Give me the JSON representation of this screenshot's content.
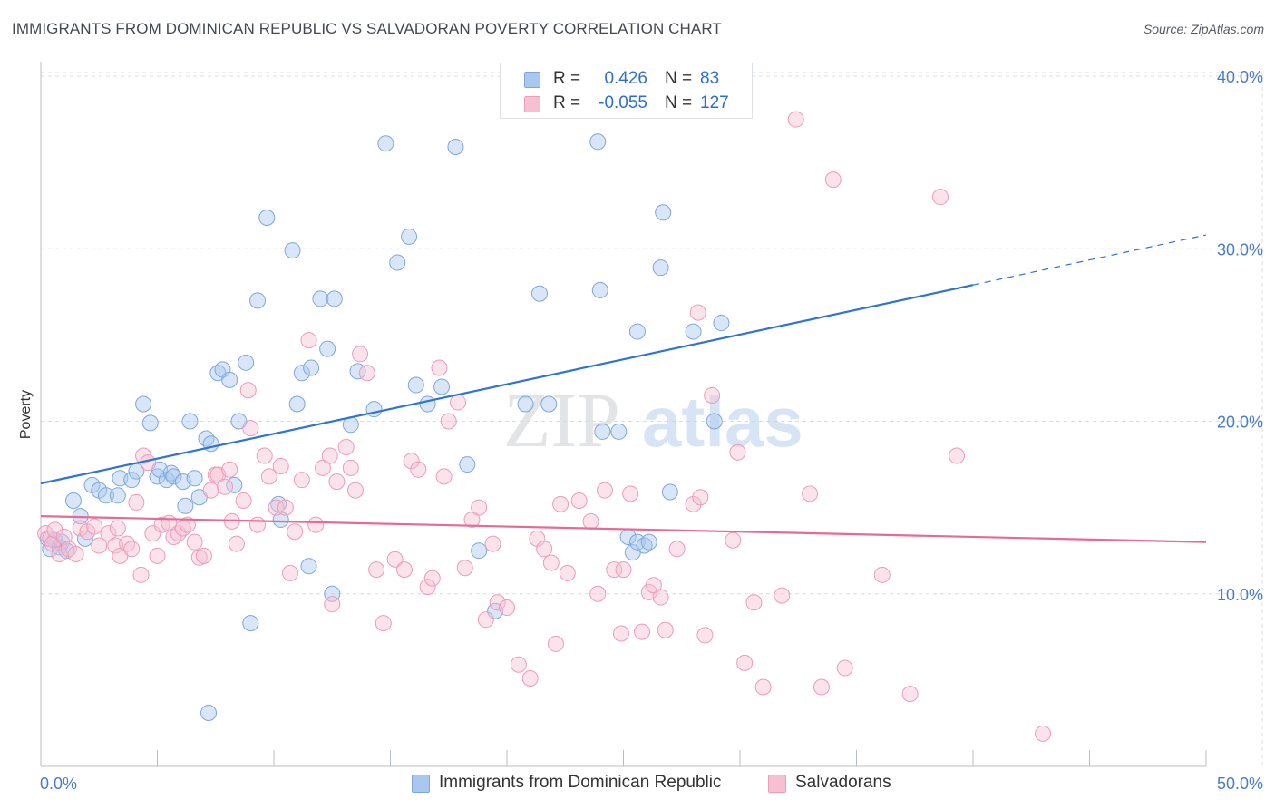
{
  "title": "IMMIGRANTS FROM DOMINICAN REPUBLIC VS SALVADORAN POVERTY CORRELATION CHART",
  "source": "Source: ZipAtlas.com",
  "watermark": {
    "zip": "ZIP",
    "atlas": "atlas"
  },
  "legend": {
    "rows": [
      {
        "r_label": "R =",
        "r_value": "0.426",
        "n_label": "N =",
        "n_value": "83",
        "color": "#a9c8ef",
        "border": "#7ea7dc"
      },
      {
        "r_label": "R =",
        "r_value": "-0.055",
        "n_label": "N =",
        "n_value": "127",
        "color": "#f6c0d2",
        "border": "#ee9bb8"
      }
    ]
  },
  "bottom_legend": [
    {
      "label": "Immigrants from Dominican Republic",
      "color": "#a9c8ef",
      "border": "#7ea7dc"
    },
    {
      "label": "Salvadorans",
      "color": "#f6c0d2",
      "border": "#ee9bb8"
    }
  ],
  "chart_data": {
    "type": "scatter",
    "ylabel": "Poverty",
    "xlabel": "",
    "xlim": [
      0,
      50
    ],
    "ylim": [
      0,
      40
    ],
    "x_tick_labels": [
      {
        "value": 0,
        "label": "0.0%"
      },
      {
        "value": 50,
        "label": "50.0%"
      }
    ],
    "y_tick_labels": [
      {
        "value": 10,
        "label": "10.0%"
      },
      {
        "value": 20,
        "label": "20.0%"
      },
      {
        "value": 30,
        "label": "30.0%"
      },
      {
        "value": 40,
        "label": "40.0%"
      }
    ],
    "series": [
      {
        "name": "Immigrants from Dominican Republic",
        "color": "#a9c8ef",
        "stroke": "#7ea7dc",
        "trend": {
          "x0": 0,
          "y0": 16.4,
          "x1": 40,
          "y1": 27.9,
          "dash_to_x": 50,
          "dash_to_y": 30.8,
          "color": "#2f74d0"
        },
        "points": [
          [
            0.3,
            13.2
          ],
          [
            0.4,
            12.6
          ],
          [
            0.6,
            13.1
          ],
          [
            0.8,
            12.7
          ],
          [
            0.9,
            13.0
          ],
          [
            1.1,
            12.5
          ],
          [
            1.4,
            15.4
          ],
          [
            1.7,
            14.5
          ],
          [
            1.9,
            13.2
          ],
          [
            2.2,
            16.3
          ],
          [
            2.5,
            16.0
          ],
          [
            2.8,
            15.7
          ],
          [
            3.3,
            15.7
          ],
          [
            3.4,
            16.7
          ],
          [
            3.9,
            16.6
          ],
          [
            4.1,
            17.1
          ],
          [
            4.4,
            21.0
          ],
          [
            4.7,
            19.9
          ],
          [
            5.0,
            16.8
          ],
          [
            5.1,
            17.2
          ],
          [
            5.4,
            16.6
          ],
          [
            5.6,
            17.0
          ],
          [
            5.7,
            16.8
          ],
          [
            6.1,
            16.5
          ],
          [
            6.2,
            15.1
          ],
          [
            6.4,
            20.0
          ],
          [
            6.6,
            16.7
          ],
          [
            6.8,
            15.6
          ],
          [
            7.1,
            19.0
          ],
          [
            7.3,
            18.7
          ],
          [
            7.6,
            22.8
          ],
          [
            7.8,
            23.0
          ],
          [
            8.1,
            22.4
          ],
          [
            8.5,
            20.0
          ],
          [
            8.3,
            16.3
          ],
          [
            8.8,
            23.4
          ],
          [
            9.3,
            27.0
          ],
          [
            9.7,
            31.8
          ],
          [
            10.2,
            15.2
          ],
          [
            10.3,
            14.3
          ],
          [
            10.8,
            29.9
          ],
          [
            11.0,
            21.0
          ],
          [
            11.2,
            22.8
          ],
          [
            11.6,
            23.1
          ],
          [
            12.0,
            27.1
          ],
          [
            12.3,
            24.2
          ],
          [
            12.6,
            27.1
          ],
          [
            13.3,
            19.8
          ],
          [
            13.6,
            22.9
          ],
          [
            14.3,
            20.7
          ],
          [
            14.8,
            36.1
          ],
          [
            15.3,
            29.2
          ],
          [
            15.8,
            30.7
          ],
          [
            16.1,
            22.1
          ],
          [
            16.6,
            21.0
          ],
          [
            17.2,
            22.0
          ],
          [
            17.8,
            35.9
          ],
          [
            18.3,
            17.5
          ],
          [
            18.8,
            12.5
          ],
          [
            19.5,
            9.0
          ],
          [
            20.8,
            21.0
          ],
          [
            21.4,
            27.4
          ],
          [
            21.8,
            21.0
          ],
          [
            23.9,
            36.2
          ],
          [
            24.0,
            27.6
          ],
          [
            24.1,
            19.4
          ],
          [
            24.8,
            19.4
          ],
          [
            25.2,
            13.3
          ],
          [
            25.4,
            12.4
          ],
          [
            25.6,
            13.0
          ],
          [
            25.9,
            12.8
          ],
          [
            26.1,
            13.0
          ],
          [
            7.2,
            3.1
          ],
          [
            9.0,
            8.3
          ],
          [
            11.5,
            11.6
          ],
          [
            12.5,
            10.0
          ],
          [
            25.6,
            25.2
          ],
          [
            26.6,
            28.9
          ],
          [
            26.7,
            32.1
          ],
          [
            27.0,
            15.9
          ],
          [
            28.0,
            25.2
          ],
          [
            28.9,
            20.0
          ],
          [
            29.2,
            25.7
          ]
        ]
      },
      {
        "name": "Salvadorans",
        "color": "#f6c0d2",
        "stroke": "#ee9bb8",
        "trend": {
          "x0": 0,
          "y0": 14.5,
          "x1": 50,
          "y1": 13.0,
          "color": "#e56a94"
        },
        "points": [
          [
            0.2,
            13.5
          ],
          [
            0.4,
            13.2
          ],
          [
            0.5,
            12.9
          ],
          [
            0.6,
            13.7
          ],
          [
            0.8,
            12.3
          ],
          [
            1.0,
            13.3
          ],
          [
            1.2,
            12.6
          ],
          [
            1.5,
            12.3
          ],
          [
            1.7,
            13.8
          ],
          [
            2.0,
            13.6
          ],
          [
            2.3,
            13.9
          ],
          [
            2.5,
            12.8
          ],
          [
            2.9,
            13.5
          ],
          [
            3.2,
            12.8
          ],
          [
            3.3,
            13.8
          ],
          [
            3.4,
            12.2
          ],
          [
            3.7,
            12.9
          ],
          [
            3.9,
            12.6
          ],
          [
            4.1,
            15.3
          ],
          [
            4.3,
            11.1
          ],
          [
            4.4,
            18.0
          ],
          [
            4.6,
            17.6
          ],
          [
            4.8,
            13.5
          ],
          [
            5.0,
            12.2
          ],
          [
            5.2,
            14.0
          ],
          [
            5.5,
            14.1
          ],
          [
            5.7,
            13.3
          ],
          [
            5.9,
            13.5
          ],
          [
            6.1,
            13.8
          ],
          [
            6.3,
            14.0
          ],
          [
            6.6,
            13.0
          ],
          [
            6.8,
            12.1
          ],
          [
            7.0,
            12.2
          ],
          [
            7.3,
            16.0
          ],
          [
            7.5,
            16.9
          ],
          [
            7.6,
            16.9
          ],
          [
            7.9,
            16.2
          ],
          [
            8.1,
            17.2
          ],
          [
            8.2,
            14.2
          ],
          [
            8.4,
            12.9
          ],
          [
            8.7,
            15.4
          ],
          [
            8.9,
            21.8
          ],
          [
            9.0,
            19.6
          ],
          [
            9.3,
            14.0
          ],
          [
            9.6,
            18.0
          ],
          [
            9.8,
            16.8
          ],
          [
            10.1,
            15.0
          ],
          [
            10.3,
            17.4
          ],
          [
            10.5,
            15.0
          ],
          [
            10.7,
            11.2
          ],
          [
            10.9,
            13.6
          ],
          [
            11.2,
            16.6
          ],
          [
            11.5,
            24.7
          ],
          [
            11.8,
            14.0
          ],
          [
            12.1,
            17.3
          ],
          [
            12.4,
            18.0
          ],
          [
            12.5,
            9.4
          ],
          [
            12.7,
            16.5
          ],
          [
            13.1,
            18.5
          ],
          [
            13.3,
            17.3
          ],
          [
            13.5,
            16.0
          ],
          [
            13.7,
            23.9
          ],
          [
            14.0,
            22.8
          ],
          [
            14.4,
            11.4
          ],
          [
            14.7,
            8.3
          ],
          [
            15.2,
            12.0
          ],
          [
            15.6,
            11.4
          ],
          [
            15.9,
            17.7
          ],
          [
            16.2,
            17.2
          ],
          [
            16.6,
            10.4
          ],
          [
            16.8,
            10.9
          ],
          [
            17.1,
            23.1
          ],
          [
            17.3,
            16.8
          ],
          [
            17.5,
            20.0
          ],
          [
            17.9,
            21.1
          ],
          [
            18.2,
            11.5
          ],
          [
            18.5,
            14.3
          ],
          [
            18.8,
            15.0
          ],
          [
            19.1,
            8.5
          ],
          [
            19.4,
            12.9
          ],
          [
            19.6,
            9.5
          ],
          [
            20.0,
            9.2
          ],
          [
            20.5,
            5.9
          ],
          [
            21.0,
            5.1
          ],
          [
            21.3,
            13.2
          ],
          [
            21.6,
            12.6
          ],
          [
            21.9,
            11.8
          ],
          [
            22.1,
            7.1
          ],
          [
            22.3,
            15.2
          ],
          [
            22.6,
            11.2
          ],
          [
            23.1,
            15.4
          ],
          [
            23.6,
            14.2
          ],
          [
            23.9,
            10.0
          ],
          [
            24.2,
            16.0
          ],
          [
            24.6,
            11.4
          ],
          [
            24.9,
            7.7
          ],
          [
            25.0,
            11.4
          ],
          [
            25.3,
            15.8
          ],
          [
            25.8,
            7.8
          ],
          [
            26.1,
            10.1
          ],
          [
            26.3,
            10.5
          ],
          [
            26.6,
            9.8
          ],
          [
            26.8,
            7.9
          ],
          [
            27.3,
            12.6
          ],
          [
            28.0,
            15.2
          ],
          [
            28.2,
            26.3
          ],
          [
            28.5,
            7.6
          ],
          [
            28.8,
            21.5
          ],
          [
            29.7,
            13.1
          ],
          [
            29.9,
            18.2
          ],
          [
            30.2,
            6.0
          ],
          [
            30.6,
            9.5
          ],
          [
            31.0,
            4.6
          ],
          [
            31.8,
            9.9
          ],
          [
            32.4,
            37.5
          ],
          [
            33.0,
            15.8
          ],
          [
            33.5,
            4.6
          ],
          [
            34.0,
            34.0
          ],
          [
            34.5,
            5.7
          ],
          [
            36.1,
            11.1
          ],
          [
            37.3,
            4.2
          ],
          [
            38.6,
            33.0
          ],
          [
            39.3,
            18.0
          ],
          [
            43.0,
            1.9
          ],
          [
            28.3,
            15.6
          ]
        ]
      }
    ]
  }
}
